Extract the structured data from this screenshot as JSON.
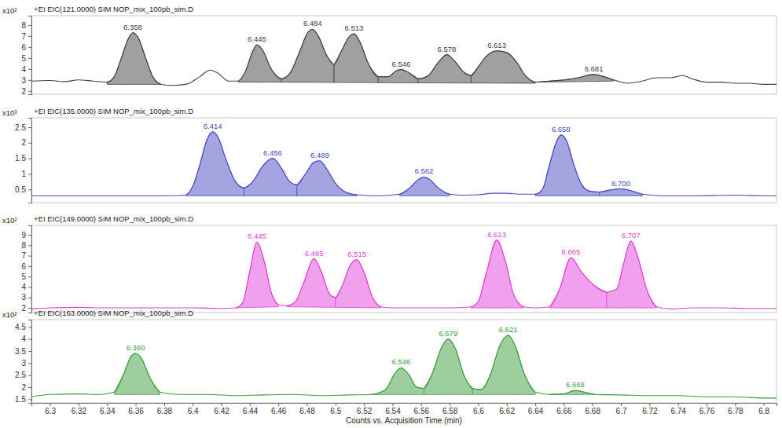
{
  "chart_data": {
    "type": "line",
    "x_label": "Counts vs. Acquisition Time (min)",
    "xlim": [
      6.287,
      6.809
    ],
    "xticks": [
      6.3,
      6.32,
      6.34,
      6.36,
      6.38,
      6.4,
      6.42,
      6.44,
      6.46,
      6.48,
      6.5,
      6.52,
      6.54,
      6.56,
      6.58,
      6.6,
      6.62,
      6.64,
      6.66,
      6.68,
      6.7,
      6.72,
      6.74,
      6.76,
      6.78,
      6.8
    ],
    "panels": [
      {
        "title": "+EI EIC(121.0000) SIM NOP_mix_100pb_sim.D",
        "multiplier": "x10²",
        "color": "#404040",
        "ylim": [
          1.7,
          8.85
        ],
        "yticks": [
          2,
          3,
          4,
          5,
          6,
          7,
          8
        ],
        "x": [
          6.287,
          6.3,
          6.31,
          6.32,
          6.33,
          6.34,
          6.345,
          6.35,
          6.355,
          6.358,
          6.362,
          6.367,
          6.372,
          6.378,
          6.385,
          6.395,
          6.405,
          6.412,
          6.418,
          6.425,
          6.432,
          6.437,
          6.442,
          6.445,
          6.449,
          6.455,
          6.462,
          6.468,
          6.475,
          6.481,
          6.484,
          6.488,
          6.494,
          6.499,
          6.504,
          6.51,
          6.513,
          6.517,
          6.523,
          6.53,
          6.537,
          6.542,
          6.546,
          6.551,
          6.558,
          6.565,
          6.572,
          6.578,
          6.583,
          6.59,
          6.595,
          6.6,
          6.606,
          6.613,
          6.62,
          6.627,
          6.633,
          6.64,
          6.65,
          6.66,
          6.67,
          6.676,
          6.681,
          6.688,
          6.695,
          6.705,
          6.715,
          6.725,
          6.735,
          6.743,
          6.75,
          6.76,
          6.77,
          6.78,
          6.79,
          6.8,
          6.809
        ],
        "values": [
          2.9,
          2.95,
          2.85,
          3.0,
          2.9,
          2.8,
          3.3,
          5.0,
          6.8,
          7.3,
          6.8,
          5.0,
          3.3,
          2.6,
          2.5,
          2.6,
          3.3,
          3.9,
          3.6,
          2.9,
          2.9,
          3.8,
          5.6,
          6.2,
          5.7,
          4.0,
          3.1,
          3.6,
          5.6,
          7.4,
          7.6,
          7.0,
          5.2,
          4.4,
          5.6,
          7.0,
          7.2,
          6.5,
          4.5,
          3.3,
          3.3,
          3.8,
          3.95,
          3.7,
          3.1,
          3.4,
          4.6,
          5.3,
          4.8,
          3.7,
          3.4,
          4.2,
          5.2,
          5.65,
          5.5,
          4.6,
          3.4,
          2.8,
          2.9,
          3.0,
          3.2,
          3.4,
          3.5,
          3.3,
          3.0,
          2.7,
          2.9,
          3.2,
          3.2,
          3.4,
          3.1,
          2.8,
          2.8,
          2.7,
          2.7,
          2.6,
          2.6
        ],
        "peaks": [
          {
            "label": "6.358",
            "x": 6.358,
            "start": 6.34,
            "end": 6.378,
            "base": [
              2.6,
              2.6
            ]
          },
          {
            "label": "6.445",
            "x": 6.445,
            "start": 6.432,
            "end": 6.462,
            "base": [
              2.8,
              2.8
            ]
          },
          {
            "label": "6.484",
            "x": 6.484,
            "start": 6.462,
            "end": 6.499,
            "base": [
              2.8,
              2.78
            ]
          },
          {
            "label": "6.513",
            "x": 6.513,
            "start": 6.499,
            "end": 6.53,
            "base": [
              2.78,
              2.76
            ]
          },
          {
            "label": "6.546",
            "x": 6.546,
            "start": 6.53,
            "end": 6.558,
            "base": [
              2.76,
              2.74
            ]
          },
          {
            "label": "6.578",
            "x": 6.578,
            "start": 6.558,
            "end": 6.595,
            "base": [
              2.74,
              2.72
            ]
          },
          {
            "label": "6.613",
            "x": 6.613,
            "start": 6.595,
            "end": 6.64,
            "base": [
              2.72,
              2.7
            ]
          },
          {
            "label": "6.681",
            "x": 6.681,
            "start": 6.64,
            "end": 6.695,
            "base": [
              2.8,
              2.9
            ]
          }
        ]
      },
      {
        "title": "+EI EIC(135.0000) SIM NOP_mix_100pb_sim.D",
        "multiplier": "x10³",
        "color": "#4848c0",
        "ylim": [
          0.08,
          2.8
        ],
        "yticks": [
          0.5,
          1,
          1.5,
          2,
          2.5
        ],
        "x": [
          6.287,
          6.3,
          6.33,
          6.36,
          6.38,
          6.395,
          6.4,
          6.405,
          6.41,
          6.414,
          6.418,
          6.423,
          6.43,
          6.436,
          6.442,
          6.449,
          6.456,
          6.462,
          6.468,
          6.473,
          6.479,
          6.485,
          6.489,
          6.494,
          6.5,
          6.507,
          6.515,
          6.53,
          6.545,
          6.552,
          6.558,
          6.562,
          6.566,
          6.572,
          6.58,
          6.59,
          6.6,
          6.61,
          6.62,
          6.63,
          6.64,
          6.645,
          6.65,
          6.655,
          6.658,
          6.662,
          6.667,
          6.672,
          6.678,
          6.685,
          6.692,
          6.7,
          6.708,
          6.715,
          6.73,
          6.75,
          6.78,
          6.8,
          6.809
        ],
        "values": [
          0.3,
          0.3,
          0.3,
          0.3,
          0.3,
          0.32,
          0.6,
          1.3,
          2.1,
          2.35,
          2.15,
          1.5,
          0.75,
          0.55,
          0.75,
          1.25,
          1.5,
          1.2,
          0.75,
          0.65,
          1.0,
          1.38,
          1.42,
          1.15,
          0.7,
          0.42,
          0.33,
          0.3,
          0.35,
          0.55,
          0.82,
          0.9,
          0.82,
          0.55,
          0.35,
          0.32,
          0.33,
          0.38,
          0.38,
          0.35,
          0.35,
          0.5,
          1.3,
          2.05,
          2.25,
          2.05,
          1.3,
          0.7,
          0.45,
          0.42,
          0.48,
          0.52,
          0.45,
          0.35,
          0.3,
          0.3,
          0.32,
          0.3,
          0.3
        ],
        "peaks": [
          {
            "label": "6.414",
            "x": 6.414,
            "start": 6.395,
            "end": 6.436,
            "base": [
              0.3,
              0.3
            ]
          },
          {
            "label": "6.456",
            "x": 6.456,
            "start": 6.436,
            "end": 6.473,
            "base": [
              0.3,
              0.3
            ]
          },
          {
            "label": "6.489",
            "x": 6.489,
            "start": 6.473,
            "end": 6.515,
            "base": [
              0.3,
              0.3
            ]
          },
          {
            "label": "6.562",
            "x": 6.562,
            "start": 6.545,
            "end": 6.58,
            "base": [
              0.3,
              0.3
            ]
          },
          {
            "label": "6.658",
            "x": 6.658,
            "start": 6.64,
            "end": 6.685,
            "base": [
              0.3,
              0.3
            ]
          },
          {
            "label": "6.700",
            "x": 6.7,
            "start": 6.685,
            "end": 6.715,
            "base": [
              0.3,
              0.3
            ]
          }
        ]
      },
      {
        "title": "+EI EIC(149.0000) SIM NOP_mix_100pb_sim.D",
        "multiplier": "x10²",
        "color": "#e040d8",
        "ylim": [
          1.55,
          9.9
        ],
        "yticks": [
          2,
          3,
          4,
          5,
          6,
          7,
          8,
          9
        ],
        "x": [
          6.287,
          6.3,
          6.32,
          6.34,
          6.36,
          6.38,
          6.4,
          6.42,
          6.43,
          6.435,
          6.44,
          6.445,
          6.45,
          6.455,
          6.46,
          6.466,
          6.472,
          6.478,
          6.485,
          6.49,
          6.496,
          6.5,
          6.505,
          6.51,
          6.515,
          6.52,
          6.526,
          6.532,
          6.54,
          6.56,
          6.58,
          6.595,
          6.6,
          6.606,
          6.613,
          6.619,
          6.625,
          6.632,
          6.64,
          6.65,
          6.657,
          6.665,
          6.672,
          6.68,
          6.69,
          6.697,
          6.702,
          6.707,
          6.712,
          6.718,
          6.725,
          6.735,
          6.75,
          6.77,
          6.79,
          6.809
        ],
        "values": [
          1.9,
          2.0,
          2.05,
          2.0,
          2.0,
          2.0,
          2.0,
          1.95,
          2.0,
          2.5,
          5.5,
          8.3,
          6.5,
          3.5,
          2.3,
          2.2,
          2.6,
          4.5,
          6.7,
          5.5,
          3.3,
          3.0,
          4.2,
          6.0,
          6.6,
          5.4,
          3.0,
          2.1,
          2.0,
          2.0,
          2.0,
          2.1,
          2.6,
          5.5,
          8.5,
          6.5,
          3.2,
          2.1,
          2.0,
          2.1,
          3.8,
          6.8,
          5.5,
          4.3,
          3.5,
          3.8,
          6.3,
          8.4,
          6.8,
          3.8,
          2.1,
          1.9,
          2.0,
          2.0,
          1.95,
          1.95
        ],
        "peaks": [
          {
            "label": "6.445",
            "x": 6.445,
            "start": 6.43,
            "end": 6.46,
            "base": [
              2.0,
              2.1
            ]
          },
          {
            "label": "6.485",
            "x": 6.485,
            "start": 6.466,
            "end": 6.5,
            "base": [
              2.1,
              2.05
            ]
          },
          {
            "label": "6.515",
            "x": 6.515,
            "start": 6.5,
            "end": 6.532,
            "base": [
              2.05,
              2.0
            ]
          },
          {
            "label": "6.613",
            "x": 6.613,
            "start": 6.595,
            "end": 6.632,
            "base": [
              2.0,
              2.0
            ]
          },
          {
            "label": "6.665",
            "x": 6.665,
            "start": 6.65,
            "end": 6.69,
            "base": [
              2.0,
              2.0
            ]
          },
          {
            "label": "6.707",
            "x": 6.707,
            "start": 6.69,
            "end": 6.725,
            "base": [
              2.0,
              2.0
            ]
          }
        ]
      },
      {
        "title": "+EI EIC(163.0000) SIM NOP_mix_100pb_sim.D",
        "multiplier": "x10²",
        "color": "#3c9c3c",
        "ylim": [
          1.35,
          4.8
        ],
        "yticks": [
          1.5,
          2,
          2.5,
          3,
          3.5,
          4,
          4.5
        ],
        "x": [
          6.287,
          6.3,
          6.32,
          6.335,
          6.345,
          6.352,
          6.357,
          6.36,
          6.364,
          6.37,
          6.377,
          6.39,
          6.41,
          6.43,
          6.45,
          6.47,
          6.49,
          6.51,
          6.525,
          6.535,
          6.542,
          6.546,
          6.551,
          6.557,
          6.562,
          6.568,
          6.574,
          6.579,
          6.584,
          6.59,
          6.596,
          6.602,
          6.609,
          6.615,
          6.621,
          6.626,
          6.632,
          6.64,
          6.65,
          6.66,
          6.665,
          6.668,
          6.674,
          6.682,
          6.7,
          6.72,
          6.74,
          6.76,
          6.78,
          6.8,
          6.809
        ],
        "values": [
          1.6,
          1.7,
          1.72,
          1.7,
          1.8,
          2.6,
          3.3,
          3.4,
          3.2,
          2.4,
          1.8,
          1.7,
          1.7,
          1.65,
          1.68,
          1.7,
          1.65,
          1.68,
          1.7,
          1.9,
          2.6,
          2.8,
          2.55,
          2.0,
          1.95,
          2.6,
          3.6,
          4.0,
          3.6,
          2.5,
          1.95,
          1.9,
          2.6,
          3.7,
          4.15,
          3.7,
          2.6,
          1.8,
          1.7,
          1.72,
          1.82,
          1.86,
          1.8,
          1.7,
          1.68,
          1.65,
          1.65,
          1.6,
          1.6,
          1.55,
          1.55
        ],
        "peaks": [
          {
            "label": "6.360",
            "x": 6.36,
            "start": 6.345,
            "end": 6.377,
            "base": [
              1.7,
              1.7
            ]
          },
          {
            "label": "6.546",
            "x": 6.546,
            "start": 6.525,
            "end": 6.562,
            "base": [
              1.7,
              1.7
            ]
          },
          {
            "label": "6.579",
            "x": 6.579,
            "start": 6.562,
            "end": 6.596,
            "base": [
              1.7,
              1.7
            ]
          },
          {
            "label": "6.621",
            "x": 6.621,
            "start": 6.596,
            "end": 6.64,
            "base": [
              1.7,
              1.7
            ]
          },
          {
            "label": "6.668",
            "x": 6.668,
            "start": 6.65,
            "end": 6.682,
            "base": [
              1.7,
              1.7
            ]
          }
        ]
      }
    ]
  }
}
